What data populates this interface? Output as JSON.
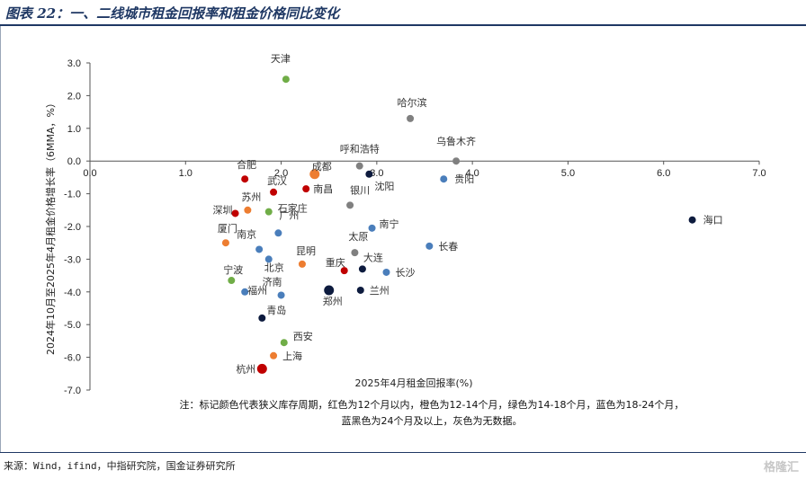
{
  "header": {
    "title": "图表 22：一、二线城市租金回报率和租金价格同比变化"
  },
  "source_text": "来源：Wind，ifind，中指研究院，国金证券研究所",
  "watermark": "格隆汇",
  "note": {
    "line1": "注：标记颜色代表狭义库存周期，红色为12个月以内，橙色为12-14个月，绿色为14-18个月，蓝色为18-24个月，",
    "line2": "蓝黑色为24个月及以上，灰色为无数据。"
  },
  "colors": {
    "red": "#c00000",
    "orange": "#ed7d31",
    "green": "#70ad47",
    "blue": "#4a7ebb",
    "navy": "#0d1b3e",
    "gray": "#808080",
    "title": "#1f3864"
  },
  "chart_data": {
    "type": "scatter",
    "xlabel": "2025年4月租金回报率(%)",
    "ylabel": "2024年10月至2025年4月租金价格增长率（6MMA，%）",
    "xlim": [
      0,
      7
    ],
    "ylim": [
      -7,
      3
    ],
    "x_ticks": [
      "0.0",
      "1.0",
      "2.0",
      "3.0",
      "4.0",
      "5.0",
      "6.0",
      "7.0"
    ],
    "y_ticks": [
      "3.0",
      "2.0",
      "1.0",
      "0.0",
      "-1.0",
      "-2.0",
      "-3.0",
      "-4.0",
      "-5.0",
      "-6.0",
      "-7.0"
    ],
    "grid": false,
    "points": [
      {
        "city": "天津",
        "x": 2.05,
        "y": 2.5,
        "color": "green"
      },
      {
        "city": "哈尔滨",
        "x": 3.35,
        "y": 1.3,
        "color": "gray"
      },
      {
        "city": "呼和浩特",
        "x": 2.82,
        "y": -0.15,
        "color": "gray"
      },
      {
        "city": "乌鲁木齐",
        "x": 3.83,
        "y": 0.0,
        "color": "gray"
      },
      {
        "city": "合肥",
        "x": 1.62,
        "y": -0.55,
        "color": "red"
      },
      {
        "city": "武汉",
        "x": 1.92,
        "y": -0.95,
        "color": "red"
      },
      {
        "city": "成都",
        "x": 2.35,
        "y": -0.4,
        "color": "orange"
      },
      {
        "city": "南昌",
        "x": 2.26,
        "y": -0.85,
        "color": "red"
      },
      {
        "city": "银川",
        "x": 2.72,
        "y": -1.35,
        "color": "gray"
      },
      {
        "city": "沈阳",
        "x": 2.92,
        "y": -0.4,
        "color": "navy"
      },
      {
        "city": "贵阳",
        "x": 3.7,
        "y": -0.55,
        "color": "blue"
      },
      {
        "city": "苏州",
        "x": 1.65,
        "y": -1.5,
        "color": "orange"
      },
      {
        "city": "深圳",
        "x": 1.52,
        "y": -1.6,
        "color": "red"
      },
      {
        "city": "石家庄",
        "x": 1.87,
        "y": -1.55,
        "color": "green"
      },
      {
        "city": "广州",
        "x": 1.97,
        "y": -2.2,
        "color": "blue"
      },
      {
        "city": "南京",
        "x": 1.77,
        "y": -2.7,
        "color": "blue"
      },
      {
        "city": "南宁",
        "x": 2.95,
        "y": -2.05,
        "color": "blue"
      },
      {
        "city": "厦门",
        "x": 1.42,
        "y": -2.5,
        "color": "orange"
      },
      {
        "city": "太原",
        "x": 2.77,
        "y": -2.8,
        "color": "gray"
      },
      {
        "city": "昆明",
        "x": 2.22,
        "y": -3.15,
        "color": "orange"
      },
      {
        "city": "北京",
        "x": 1.87,
        "y": -3.0,
        "color": "blue"
      },
      {
        "city": "长春",
        "x": 3.55,
        "y": -2.6,
        "color": "blue"
      },
      {
        "city": "重庆",
        "x": 2.66,
        "y": -3.35,
        "color": "red"
      },
      {
        "city": "大连",
        "x": 2.85,
        "y": -3.3,
        "color": "navy"
      },
      {
        "city": "长沙",
        "x": 3.1,
        "y": -3.4,
        "color": "blue"
      },
      {
        "city": "宁波",
        "x": 1.48,
        "y": -3.65,
        "color": "green"
      },
      {
        "city": "福州",
        "x": 1.62,
        "y": -4.0,
        "color": "blue"
      },
      {
        "city": "济南",
        "x": 2.0,
        "y": -4.1,
        "color": "blue"
      },
      {
        "city": "郑州",
        "x": 2.5,
        "y": -3.95,
        "color": "navy"
      },
      {
        "city": "兰州",
        "x": 2.83,
        "y": -3.95,
        "color": "navy"
      },
      {
        "city": "青岛",
        "x": 1.8,
        "y": -4.8,
        "color": "navy"
      },
      {
        "city": "西安",
        "x": 2.03,
        "y": -5.55,
        "color": "green"
      },
      {
        "city": "上海",
        "x": 1.92,
        "y": -5.95,
        "color": "orange"
      },
      {
        "city": "杭州",
        "x": 1.8,
        "y": -6.35,
        "color": "red"
      },
      {
        "city": "海口",
        "x": 6.3,
        "y": -1.8,
        "color": "navy"
      }
    ]
  }
}
